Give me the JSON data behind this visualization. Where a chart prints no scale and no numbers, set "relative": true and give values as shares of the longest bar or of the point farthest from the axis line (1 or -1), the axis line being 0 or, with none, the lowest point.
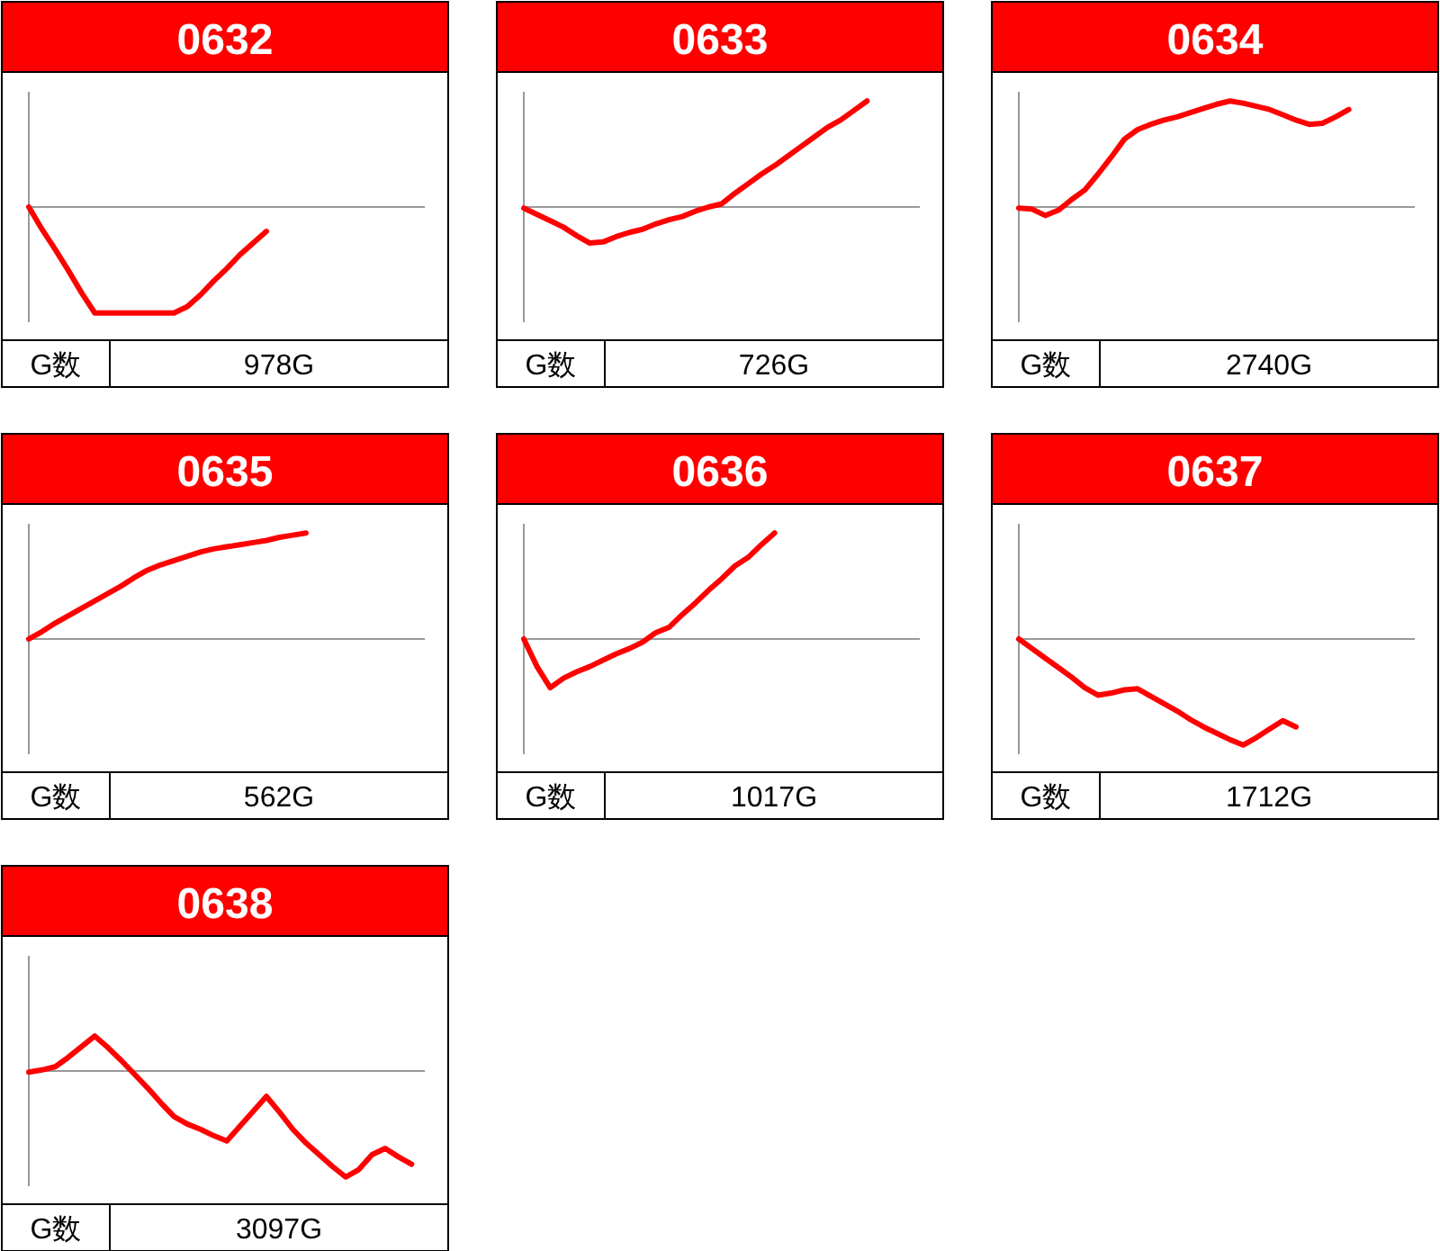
{
  "chart_data": [
    {
      "type": "line",
      "title": "0632",
      "relative": true,
      "color": "#ff0000",
      "annotations": [
        "G数",
        "978G"
      ],
      "categories": [
        null,
        null,
        null,
        null,
        null,
        null,
        null,
        null,
        null,
        null,
        null,
        null,
        null,
        null,
        null,
        null,
        null,
        null,
        null,
        null,
        null,
        null,
        null,
        null,
        null,
        null,
        null,
        null,
        null,
        null,
        null
      ],
      "values": [
        0,
        -0.21,
        -0.4,
        -0.6,
        -0.81,
        -1,
        -1,
        -1,
        -1,
        -1,
        -1,
        -1,
        -0.94,
        -0.83,
        -0.7,
        -0.58,
        -0.45,
        -0.34,
        -0.23,
        null,
        null,
        null,
        null,
        null,
        null,
        null,
        null,
        null,
        null,
        null,
        null
      ]
    },
    {
      "type": "line",
      "title": "0633",
      "relative": true,
      "color": "#ff0000",
      "annotations": [
        "G数",
        "726G"
      ],
      "categories": [
        null,
        null,
        null,
        null,
        null,
        null,
        null,
        null,
        null,
        null,
        null,
        null,
        null,
        null,
        null,
        null,
        null,
        null,
        null,
        null,
        null,
        null,
        null,
        null,
        null,
        null,
        null,
        null,
        null,
        null,
        null
      ],
      "values": [
        -0.01,
        -0.07,
        -0.13,
        -0.19,
        -0.27,
        -0.34,
        -0.33,
        -0.28,
        -0.24,
        -0.21,
        -0.16,
        -0.12,
        -0.09,
        -0.04,
        0,
        0.03,
        0.13,
        0.22,
        0.31,
        0.39,
        0.48,
        0.57,
        0.66,
        0.75,
        0.82,
        0.91,
        1,
        null,
        null,
        null,
        null
      ]
    },
    {
      "type": "line",
      "title": "0634",
      "relative": true,
      "color": "#ff0000",
      "annotations": [
        "G数",
        "2740G"
      ],
      "categories": [
        null,
        null,
        null,
        null,
        null,
        null,
        null,
        null,
        null,
        null,
        null,
        null,
        null,
        null,
        null,
        null,
        null,
        null,
        null,
        null,
        null,
        null,
        null,
        null,
        null,
        null,
        null,
        null,
        null,
        null,
        null
      ],
      "values": [
        -0.01,
        -0.02,
        -0.08,
        -0.03,
        0.07,
        0.16,
        0.31,
        0.47,
        0.64,
        0.73,
        0.78,
        0.82,
        0.85,
        0.89,
        0.93,
        0.97,
        1,
        0.98,
        0.95,
        0.92,
        0.87,
        0.82,
        0.78,
        0.79,
        0.85,
        0.92,
        null,
        null,
        null,
        null,
        null
      ]
    },
    {
      "type": "line",
      "title": "0635",
      "relative": true,
      "color": "#ff0000",
      "annotations": [
        "G数",
        "562G"
      ],
      "categories": [
        null,
        null,
        null,
        null,
        null,
        null,
        null,
        null,
        null,
        null,
        null,
        null,
        null,
        null,
        null,
        null,
        null,
        null,
        null,
        null,
        null,
        null,
        null,
        null,
        null,
        null,
        null,
        null,
        null,
        null,
        null
      ],
      "values": [
        0,
        0.07,
        0.15,
        0.22,
        0.29,
        0.36,
        0.43,
        0.5,
        0.58,
        0.65,
        0.7,
        0.74,
        0.78,
        0.82,
        0.85,
        0.87,
        0.89,
        0.91,
        0.93,
        0.96,
        0.98,
        1,
        null,
        null,
        null,
        null,
        null,
        null,
        null,
        null,
        null
      ]
    },
    {
      "type": "line",
      "title": "0636",
      "relative": true,
      "color": "#ff0000",
      "annotations": [
        "G数",
        "1017G"
      ],
      "categories": [
        null,
        null,
        null,
        null,
        null,
        null,
        null,
        null,
        null,
        null,
        null,
        null,
        null,
        null,
        null,
        null,
        null,
        null,
        null,
        null,
        null,
        null,
        null,
        null,
        null,
        null,
        null,
        null,
        null,
        null,
        null
      ],
      "values": [
        0,
        -0.26,
        -0.46,
        -0.37,
        -0.31,
        -0.26,
        -0.2,
        -0.14,
        -0.09,
        -0.03,
        0.06,
        0.11,
        0.23,
        0.34,
        0.46,
        0.57,
        0.69,
        0.77,
        0.89,
        1,
        null,
        null,
        null,
        null,
        null,
        null,
        null,
        null,
        null,
        null,
        null
      ]
    },
    {
      "type": "line",
      "title": "0637",
      "relative": true,
      "color": "#ff0000",
      "annotations": [
        "G数",
        "1712G"
      ],
      "categories": [
        null,
        null,
        null,
        null,
        null,
        null,
        null,
        null,
        null,
        null,
        null,
        null,
        null,
        null,
        null,
        null,
        null,
        null,
        null,
        null,
        null,
        null,
        null,
        null,
        null,
        null,
        null,
        null,
        null,
        null,
        null
      ],
      "values": [
        0,
        -0.09,
        -0.18,
        -0.27,
        -0.36,
        -0.46,
        -0.53,
        -0.51,
        -0.48,
        -0.47,
        -0.54,
        -0.61,
        -0.68,
        -0.76,
        -0.83,
        -0.89,
        -0.95,
        -1,
        -0.93,
        -0.85,
        -0.77,
        -0.83,
        null,
        null,
        null,
        null,
        null,
        null,
        null,
        null,
        null
      ]
    },
    {
      "type": "line",
      "title": "0638",
      "relative": true,
      "color": "#ff0000",
      "annotations": [
        "G数",
        "3097G"
      ],
      "categories": [
        null,
        null,
        null,
        null,
        null,
        null,
        null,
        null,
        null,
        null,
        null,
        null,
        null,
        null,
        null,
        null,
        null,
        null,
        null,
        null,
        null,
        null,
        null,
        null,
        null,
        null,
        null,
        null,
        null,
        null,
        null
      ],
      "values": [
        -0.01,
        0.01,
        0.04,
        0.13,
        0.23,
        0.33,
        0.22,
        0.1,
        -0.03,
        -0.16,
        -0.3,
        -0.43,
        -0.5,
        -0.55,
        -0.61,
        -0.66,
        -0.52,
        -0.38,
        -0.24,
        -0.39,
        -0.55,
        -0.68,
        -0.79,
        -0.9,
        -1,
        -0.93,
        -0.79,
        -0.73,
        -0.81,
        -0.88,
        null
      ]
    }
  ]
}
